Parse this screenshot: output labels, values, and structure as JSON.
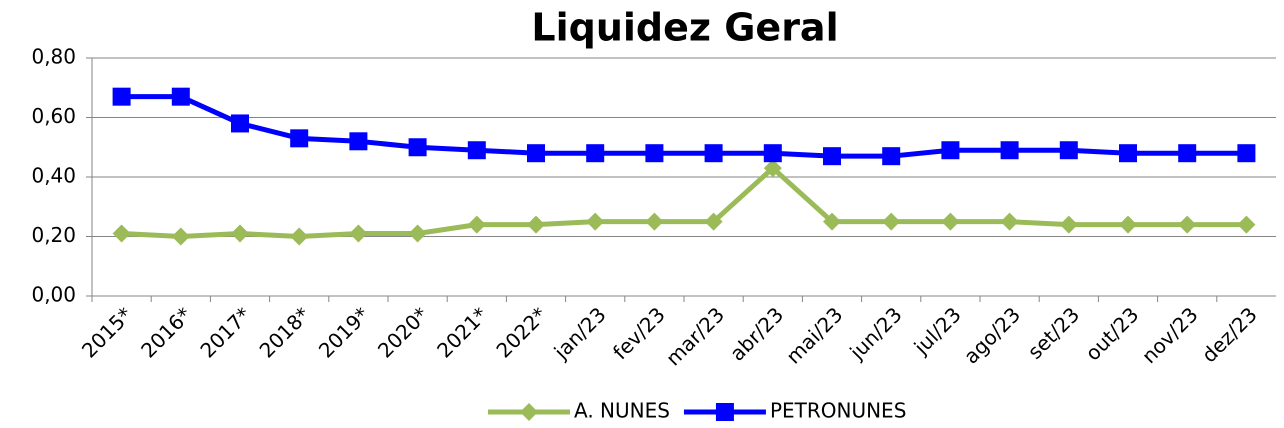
{
  "chart_data": {
    "type": "line",
    "title": "Liquidez Geral",
    "categories": [
      "2015*",
      "2016*",
      "2017*",
      "2018*",
      "2019*",
      "2020*",
      "2021*",
      "2022*",
      "jan/23",
      "fev/23",
      "mar/23",
      "abr/23",
      "mai/23",
      "jun/23",
      "jul/23",
      "ago/23",
      "set/23",
      "out/23",
      "nov/23",
      "dez/23"
    ],
    "series": [
      {
        "name": "A. NUNES",
        "color": "#9bbb59",
        "marker": "diamond",
        "values": [
          0.21,
          0.2,
          0.21,
          0.2,
          0.21,
          0.21,
          0.24,
          0.24,
          0.25,
          0.25,
          0.25,
          0.43,
          0.25,
          0.25,
          0.25,
          0.25,
          0.24,
          0.24,
          0.24,
          0.24
        ]
      },
      {
        "name": "PETRONUNES",
        "color": "#0000ff",
        "marker": "square",
        "values": [
          0.67,
          0.67,
          0.58,
          0.53,
          0.52,
          0.5,
          0.49,
          0.48,
          0.48,
          0.48,
          0.48,
          0.48,
          0.47,
          0.47,
          0.49,
          0.49,
          0.49,
          0.48,
          0.48,
          0.48
        ]
      }
    ],
    "ylim": [
      0,
      0.8
    ],
    "yticks": [
      {
        "value": 0,
        "label": "0,00"
      },
      {
        "value": 0.2,
        "label": "0,20"
      },
      {
        "value": 0.4,
        "label": "0,40"
      },
      {
        "value": 0.6,
        "label": "0,60"
      },
      {
        "value": 0.8,
        "label": "0,80"
      }
    ],
    "grid": true,
    "legend": "bottom"
  }
}
